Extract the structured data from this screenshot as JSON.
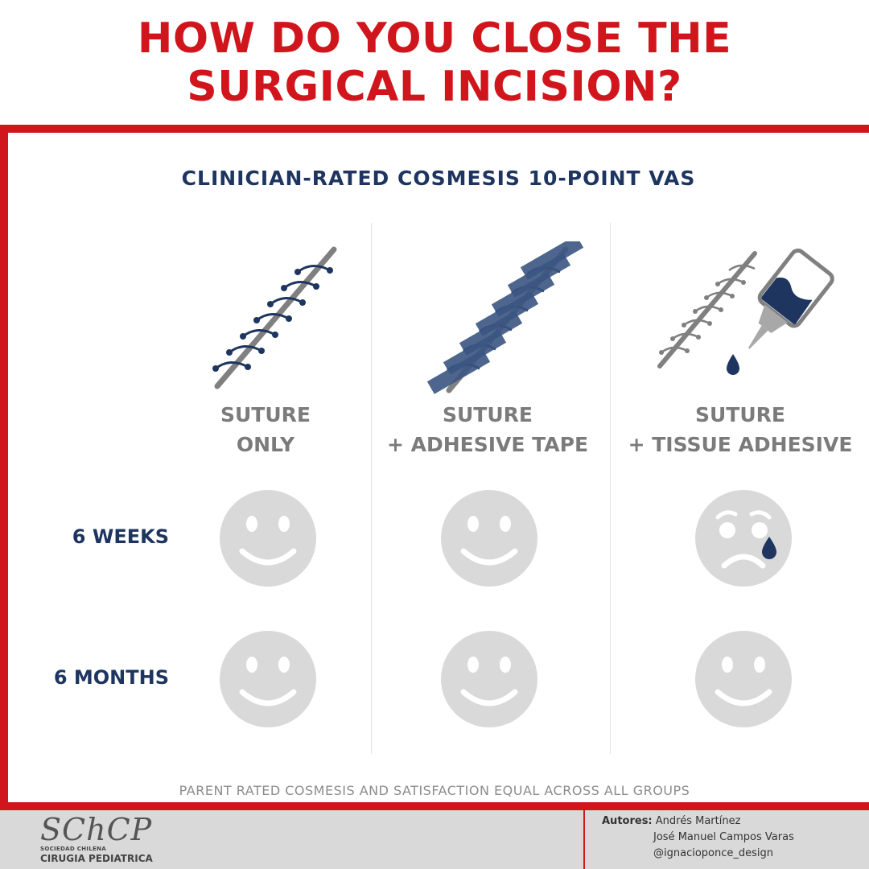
{
  "title": {
    "line1": "HOW DO YOU CLOSE THE",
    "line2": "SURGICAL INCISION?"
  },
  "subtitle": "CLINICIAN-RATED COSMESIS 10-POINT VAS",
  "columns": [
    {
      "line1": "SUTURE",
      "line2": "ONLY"
    },
    {
      "line1": "SUTURE",
      "line2": "+ ADHESIVE TAPE"
    },
    {
      "line1": "SUTURE",
      "line2": "+ TISSUE ADHESIVE"
    }
  ],
  "rows": [
    {
      "label": "6 WEEKS",
      "faces": [
        "happy",
        "happy",
        "sad"
      ]
    },
    {
      "label": "6 MONTHS",
      "faces": [
        "happy",
        "happy",
        "happy"
      ]
    }
  ],
  "footnote": "PARENT RATED COSMESIS AND SATISFACTION EQUAL ACROSS ALL GROUPS",
  "footer": {
    "logo_main": "SChCP",
    "logo_small": "SOCIEDAD CHILENA",
    "logo_big": "CIRUGIA PEDIATRICA",
    "authors_label": "Autores:",
    "authors": [
      "Andrés Martínez",
      "José Manuel Campos Varas",
      "@ignacioponce_design"
    ]
  },
  "colors": {
    "accent_red": "#d0161c",
    "navy": "#1e3560",
    "face_gray": "#d9d9d9",
    "label_gray": "#7b7b7b"
  },
  "icons": [
    "suture-icon",
    "adhesive-tape-icon",
    "tissue-adhesive-bottle-icon",
    "happy-face-icon",
    "sad-face-icon"
  ]
}
